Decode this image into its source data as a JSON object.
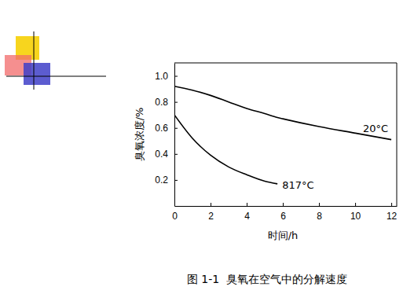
{
  "chart_data": {
    "type": "line",
    "title": "图 1-1  臭氧在空气中的分解速度",
    "x_label": "时间/h",
    "y_label": "臭氧浓度/%",
    "x": [
      0,
      1,
      2,
      3,
      4,
      5,
      5.7,
      6,
      8,
      10,
      12
    ],
    "series": [
      {
        "name": "20°C",
        "color": "#000000",
        "values": [
          0.92,
          0.89,
          0.85,
          0.8,
          0.75,
          0.71,
          0.68,
          0.67,
          0.61,
          0.56,
          0.51
        ]
      },
      {
        "name": "817°C",
        "color": "#000000",
        "values": [
          0.7,
          0.52,
          0.39,
          0.3,
          0.24,
          0.19,
          0.17,
          null,
          null,
          null,
          null
        ]
      }
    ],
    "xlim": [
      0,
      12.3
    ],
    "xticks": [
      0,
      2,
      4,
      6,
      8,
      10,
      12
    ],
    "ylim": [
      0,
      1.1
    ],
    "yticks": [
      0.2,
      0.4,
      0.6,
      0.8,
      {
        "value": 1,
        "label": "1.0"
      }
    ]
  }
}
